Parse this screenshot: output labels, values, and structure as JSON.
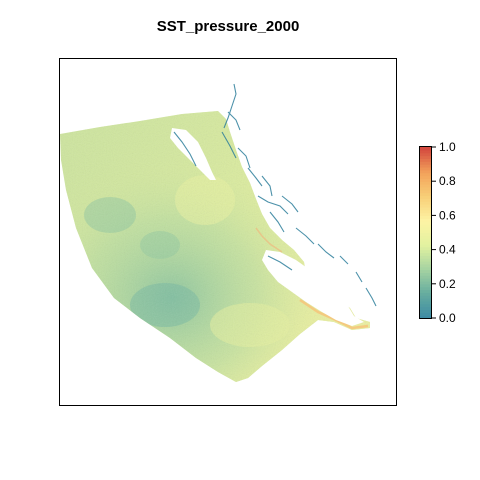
{
  "map": {
    "title": "SST_pressure_2000"
  },
  "legend": {
    "ticks": [
      "0.0",
      "0.2",
      "0.4",
      "0.6",
      "0.8",
      "1.0"
    ],
    "range": [
      0,
      1
    ],
    "palette": [
      "#3e8ca3",
      "#67ad9f",
      "#a6d3a1",
      "#e3f2a0",
      "#fdf3a4",
      "#f8cf78",
      "#f3a35b",
      "#d44a3f"
    ]
  },
  "colors": {
    "surface_base": "#cde59e",
    "surface_light": "#e3ef9d",
    "surface_teal": "#8ec7a0",
    "coastline": "#2e7f9c",
    "warm_edge": "#f6c47a"
  }
}
